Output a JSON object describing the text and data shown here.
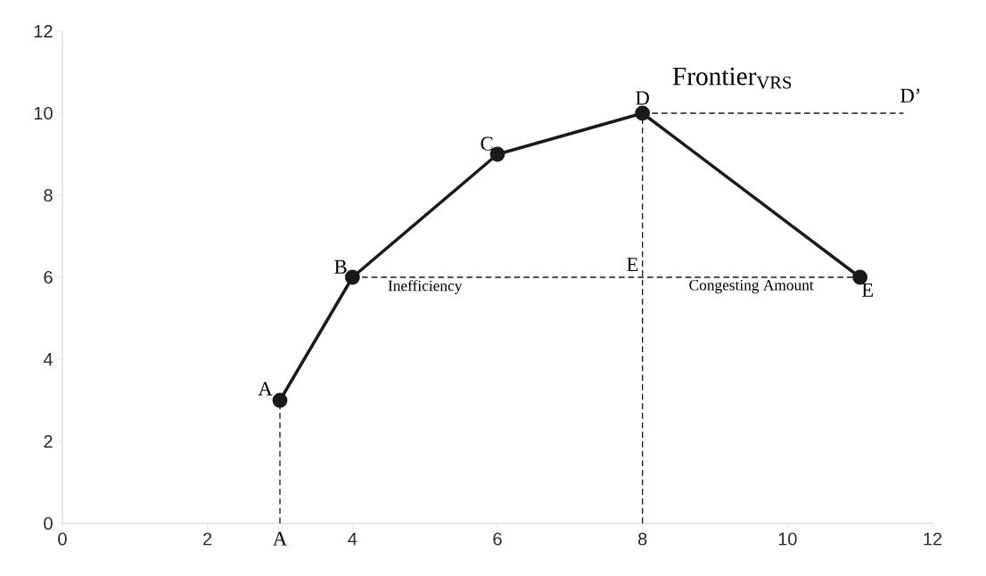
{
  "chart_data": {
    "type": "line",
    "xlim": [
      0,
      12
    ],
    "ylim": [
      0,
      12
    ],
    "xticks": [
      0,
      2,
      4,
      6,
      8,
      10,
      12
    ],
    "yticks": [
      0,
      2,
      4,
      6,
      8,
      10,
      12
    ],
    "grid": false,
    "marker": "circle",
    "line_style": "solid",
    "series": [
      {
        "color": "#1a1a1a",
        "x": [
          3,
          4,
          6,
          8,
          11
        ],
        "values": [
          3,
          6,
          9,
          10,
          6
        ]
      },
      {
        "color": "#1a1a1a",
        "x": [
          3,
          3
        ],
        "values": [
          0,
          3
        ],
        "line_style": "dashed",
        "marker": "none"
      },
      {
        "color": "#1a1a1a",
        "x": [
          4,
          11
        ],
        "values": [
          6,
          6
        ],
        "line_style": "dashed",
        "marker": "none"
      },
      {
        "color": "#1a1a1a",
        "x": [
          8,
          8
        ],
        "values": [
          0,
          10
        ],
        "line_style": "dashed",
        "marker": "none"
      },
      {
        "color": "#1a1a1a",
        "x": [
          8,
          11.6
        ],
        "values": [
          10,
          10
        ],
        "line_style": "dashed",
        "marker": "none"
      }
    ],
    "annotations": [
      "Frontier$_{VRS}$",
      {
        "text": "A",
        "x": 3,
        "y": 3
      },
      {
        "text": "B",
        "x": 4,
        "y": 6
      },
      {
        "text": "C",
        "x": 6,
        "y": 9
      },
      {
        "text": "D",
        "x": 8,
        "y": 10
      },
      {
        "text": "E",
        "x": 11,
        "y": 6
      },
      {
        "text": "E",
        "x": 8,
        "y": 6
      },
      {
        "text": "D’",
        "x": 11.6,
        "y": 10
      },
      {
        "text": "A",
        "x": 3,
        "y": 0
      },
      {
        "text": "Inefficiency",
        "x": 5,
        "y": 6
      },
      {
        "text": "Congesting Amount",
        "x": 9.5,
        "y": 6
      }
    ]
  }
}
